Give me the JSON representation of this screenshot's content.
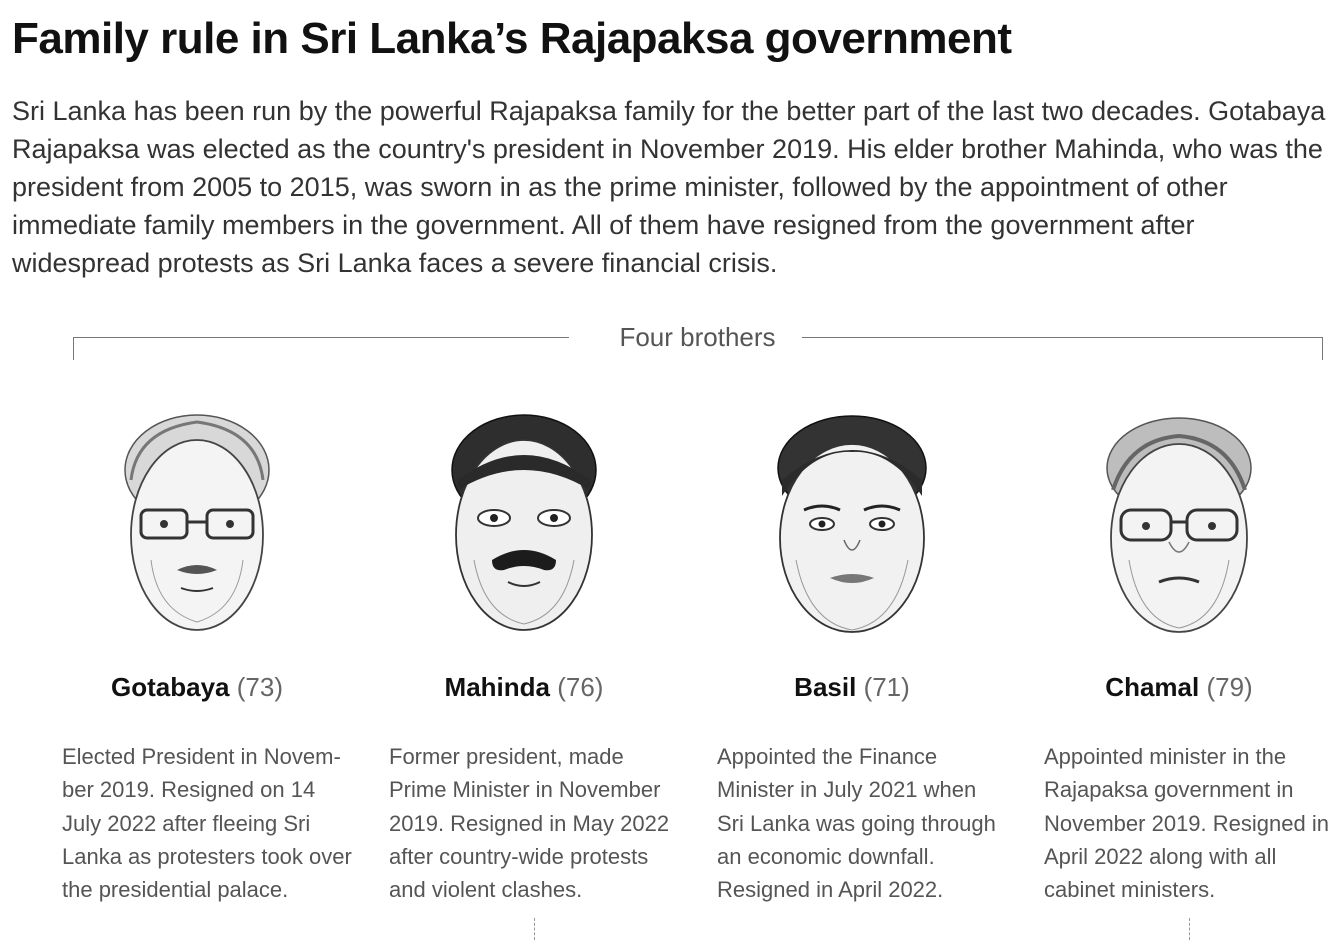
{
  "title": "Family rule in Sri Lanka’s Rajapaksa government",
  "intro": "Sri Lanka has been run by the powerful Rajapaksa family for the better part of the last two decades. Gotabaya Rajapaksa was elected as the country's president in November 2019. His elder brother Mahinda, who was the president from 2005 to 2015, was sworn in as the prime minister, followed by the appointment of other immediate family members in the government. All of them have resigned from the government after widespread protests as Sri Lanka faces a severe financial crisis.",
  "group_label": "Four brothers",
  "brothers": [
    {
      "name": "Gotabaya",
      "age": "(73)",
      "description": "Elected President in Novem-ber 2019. Resigned on 14 July 2022 after fleeing Sri Lanka as protesters took over the presidential palace.",
      "portrait": "portrait-gotabaya"
    },
    {
      "name": "Mahinda",
      "age": "(76)",
      "description": "Former president, made Prime Minister in November 2019. Resigned in May 2022 after country-wide protests and violent clashes.",
      "portrait": "portrait-mahinda"
    },
    {
      "name": "Basil",
      "age": "(71)",
      "description": "Appointed the Finance Minister in July 2021 when Sri Lanka was going through an economic downfall. Resigned in April 2022.",
      "portrait": "portrait-basil"
    },
    {
      "name": "Chamal",
      "age": "(79)",
      "description": "Appointed minister in the Rajapaksa government in November 2019. Resigned in April 2022 along with all cabinet ministers.",
      "portrait": "portrait-chamal"
    }
  ]
}
